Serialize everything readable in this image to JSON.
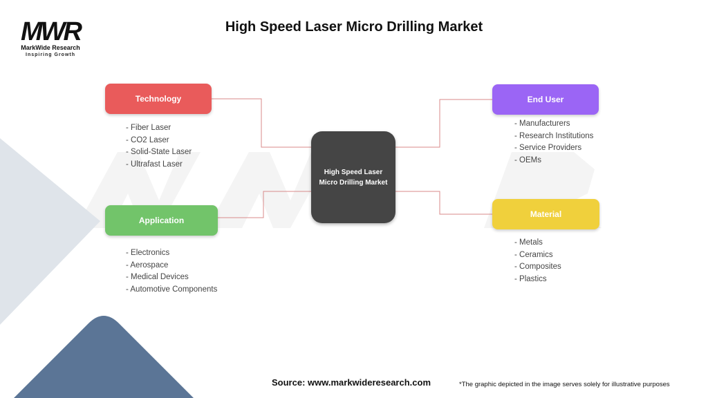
{
  "title": "High Speed Laser Micro Drilling Market",
  "logo": {
    "mark": "MWR",
    "name": "MarkWide Research",
    "tagline": "Inspiring Growth"
  },
  "center": {
    "line1": "High Speed Laser",
    "line2": "Micro Drilling Market"
  },
  "categories": [
    {
      "label": "Technology",
      "color": "#e95b5b",
      "items": [
        "- Fiber Laser",
        "- CO2 Laser",
        "- Solid-State Laser",
        "- Ultrafast Laser"
      ]
    },
    {
      "label": "Application",
      "color": "#72c46a",
      "items": [
        "- Electronics",
        "- Aerospace",
        "- Medical Devices",
        "- Automotive Components"
      ]
    },
    {
      "label": "End User",
      "color": "#9b65f5",
      "items": [
        "- Manufacturers",
        "- Research Institutions",
        "- Service Providers",
        "- OEMs"
      ]
    },
    {
      "label": "Material",
      "color": "#f0d03c",
      "items": [
        "- Metals",
        "- Ceramics",
        "- Composites",
        "- Plastics"
      ]
    }
  ],
  "connector_color": "#d98a8a",
  "source": "Source: www.markwideresearch.com",
  "note": "*The graphic depicted in the image serves solely for illustrative purposes"
}
